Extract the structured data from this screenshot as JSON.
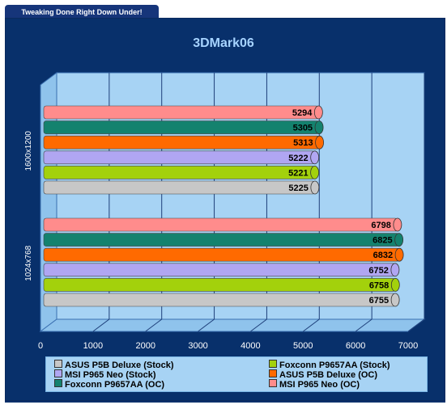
{
  "banner": {
    "text": "Tweaking Done Right Down Under!"
  },
  "colors": {
    "frame": "#08306b",
    "plot_bg": "#a7d3f4",
    "title": "#a6d3ff",
    "series": [
      "#c7c7c7",
      "#a3d10c",
      "#b0a6f2",
      "#ff6a00",
      "#14826e",
      "#ff8c8c"
    ]
  },
  "chart_data": {
    "type": "bar",
    "orientation": "horizontal",
    "title": "3DMark06",
    "categories": [
      "1600x1200",
      "1024x768"
    ],
    "xlim": [
      0,
      7000
    ],
    "xticks": [
      "0",
      "1000",
      "2000",
      "3000",
      "4000",
      "5000",
      "6000",
      "7000"
    ],
    "grid": true,
    "legend_position": "bottom",
    "series": [
      {
        "name": "ASUS P5B Deluxe (Stock)",
        "values": [
          5225,
          6755
        ]
      },
      {
        "name": "Foxconn P9657AA (Stock)",
        "values": [
          5221,
          6758
        ]
      },
      {
        "name": "MSI P965 Neo (Stock)",
        "values": [
          5222,
          6752
        ]
      },
      {
        "name": "ASUS P5B Deluxe (OC)",
        "values": [
          5313,
          6832
        ]
      },
      {
        "name": "Foxconn P9657AA (OC)",
        "values": [
          5305,
          6825
        ]
      },
      {
        "name": "MSI P965 Neo (OC)",
        "values": [
          5294,
          6798
        ]
      }
    ]
  }
}
